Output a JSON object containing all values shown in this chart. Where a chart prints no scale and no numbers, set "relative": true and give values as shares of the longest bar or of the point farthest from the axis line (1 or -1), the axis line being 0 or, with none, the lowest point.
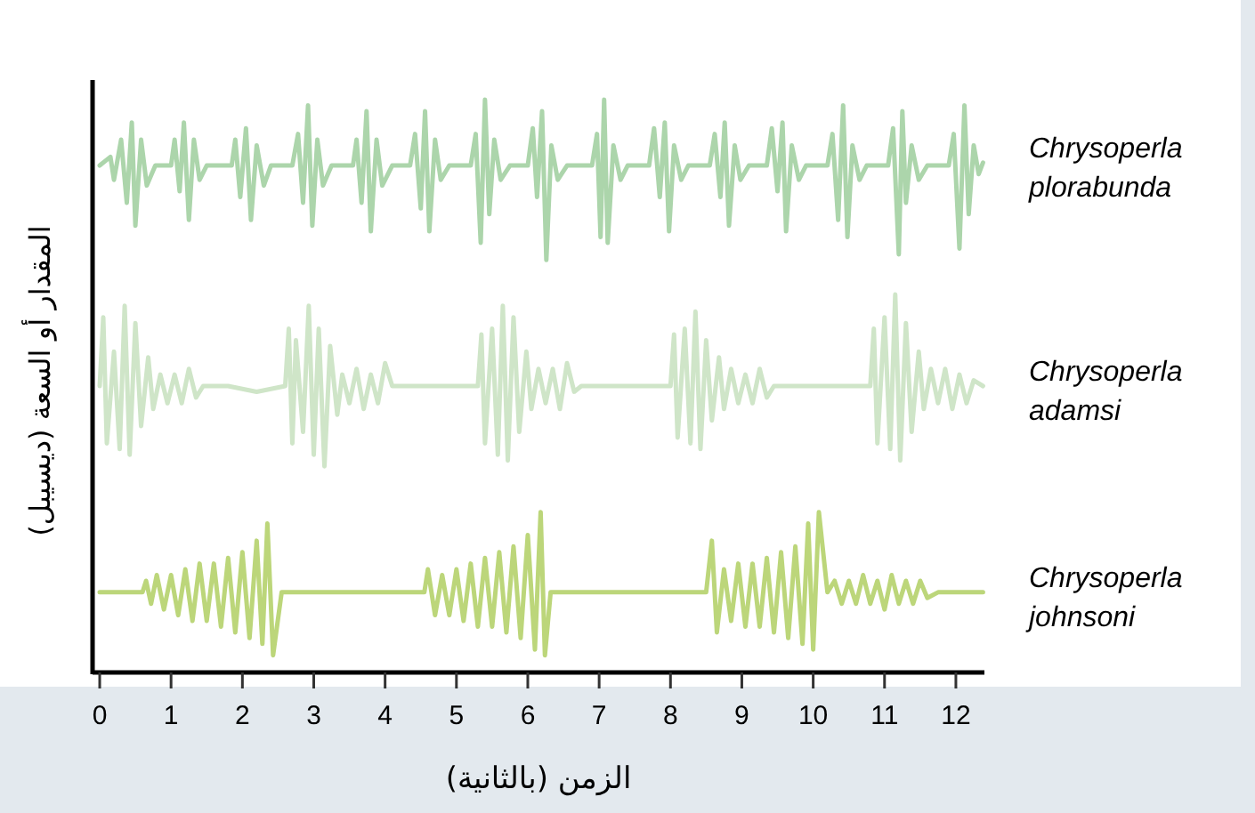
{
  "chart_data": {
    "type": "line",
    "relative": true,
    "xlabel": "الزمن (بالثانية)",
    "ylabel": "المقدار أو السعة (ديسيبل)",
    "xlim": [
      -0.1,
      12.4
    ],
    "xticks": [
      0,
      1,
      2,
      3,
      4,
      5,
      6,
      7,
      8,
      9,
      10,
      11,
      12
    ],
    "series": [
      {
        "name": "Chrysoperla plorabunda",
        "color": "#acd5ab",
        "x": [
          0,
          0.15,
          0.2,
          0.3,
          0.38,
          0.45,
          0.5,
          0.58,
          0.66,
          0.78,
          1.0,
          1.05,
          1.12,
          1.18,
          1.25,
          1.32,
          1.4,
          1.5,
          1.85,
          1.9,
          1.97,
          2.05,
          2.12,
          2.2,
          2.3,
          2.4,
          2.7,
          2.78,
          2.85,
          2.92,
          2.98,
          3.05,
          3.13,
          3.25,
          3.55,
          3.6,
          3.67,
          3.74,
          3.8,
          3.88,
          3.96,
          4.1,
          4.35,
          4.42,
          4.5,
          4.56,
          4.62,
          4.7,
          4.78,
          4.9,
          5.2,
          5.27,
          5.34,
          5.4,
          5.46,
          5.53,
          5.62,
          5.75,
          6.0,
          6.07,
          6.13,
          6.2,
          6.26,
          6.33,
          6.42,
          6.55,
          6.9,
          6.97,
          7.02,
          7.07,
          7.12,
          7.2,
          7.3,
          7.4,
          7.7,
          7.77,
          7.85,
          7.92,
          7.98,
          8.05,
          8.15,
          8.25,
          8.55,
          8.62,
          8.7,
          8.76,
          8.82,
          8.9,
          8.98,
          9.1,
          9.35,
          9.42,
          9.5,
          9.57,
          9.62,
          9.7,
          9.8,
          9.9,
          10.2,
          10.27,
          10.35,
          10.42,
          10.48,
          10.55,
          10.65,
          10.75,
          11.05,
          11.12,
          11.2,
          11.25,
          11.3,
          11.38,
          11.48,
          11.6,
          11.9,
          11.97,
          12.05,
          12.12,
          12.18,
          12.25,
          12.32,
          12.38
        ],
        "values": [
          0.885,
          0.9,
          0.86,
          0.93,
          0.82,
          0.96,
          0.78,
          0.93,
          0.85,
          0.885,
          0.885,
          0.93,
          0.84,
          0.96,
          0.79,
          0.93,
          0.86,
          0.885,
          0.885,
          0.93,
          0.83,
          0.95,
          0.79,
          0.92,
          0.85,
          0.885,
          0.885,
          0.94,
          0.82,
          0.99,
          0.78,
          0.93,
          0.85,
          0.885,
          0.885,
          0.93,
          0.82,
          0.98,
          0.77,
          0.93,
          0.85,
          0.885,
          0.885,
          0.94,
          0.81,
          0.98,
          0.77,
          0.93,
          0.86,
          0.885,
          0.885,
          0.94,
          0.75,
          1.0,
          0.8,
          0.93,
          0.86,
          0.885,
          0.885,
          0.95,
          0.83,
          0.98,
          0.72,
          0.92,
          0.86,
          0.885,
          0.885,
          0.94,
          0.76,
          1.0,
          0.75,
          0.92,
          0.86,
          0.885,
          0.885,
          0.95,
          0.83,
          0.96,
          0.77,
          0.92,
          0.86,
          0.885,
          0.885,
          0.94,
          0.83,
          0.96,
          0.78,
          0.92,
          0.86,
          0.885,
          0.885,
          0.95,
          0.84,
          0.96,
          0.77,
          0.92,
          0.86,
          0.885,
          0.885,
          0.94,
          0.79,
          0.99,
          0.76,
          0.92,
          0.86,
          0.885,
          0.885,
          0.95,
          0.73,
          0.98,
          0.82,
          0.92,
          0.86,
          0.885,
          0.885,
          0.94,
          0.74,
          0.99,
          0.8,
          0.92,
          0.87,
          0.89
        ]
      },
      {
        "name": "Chrysoperla adamsi",
        "color": "#cfe5c8",
        "x": [
          0,
          0.05,
          0.1,
          0.2,
          0.28,
          0.35,
          0.42,
          0.5,
          0.58,
          0.68,
          0.75,
          0.85,
          0.95,
          1.05,
          1.15,
          1.25,
          1.35,
          1.45,
          1.8,
          2.2,
          2.6,
          2.65,
          2.7,
          2.75,
          2.85,
          2.93,
          3.0,
          3.07,
          3.15,
          3.23,
          3.33,
          3.4,
          3.5,
          3.6,
          3.7,
          3.8,
          3.9,
          4.0,
          4.1,
          4.5,
          4.9,
          5.3,
          5.35,
          5.4,
          5.5,
          5.58,
          5.65,
          5.72,
          5.8,
          5.88,
          5.98,
          6.05,
          6.15,
          6.25,
          6.35,
          6.45,
          6.55,
          6.65,
          6.75,
          7.1,
          7.5,
          8.0,
          8.05,
          8.1,
          8.2,
          8.28,
          8.35,
          8.42,
          8.5,
          8.58,
          8.68,
          8.75,
          8.85,
          8.95,
          9.05,
          9.15,
          9.25,
          9.35,
          9.45,
          9.8,
          10.3,
          10.8,
          10.85,
          10.9,
          11.0,
          11.08,
          11.15,
          11.22,
          11.3,
          11.38,
          11.48,
          11.55,
          11.65,
          11.75,
          11.85,
          11.95,
          12.05,
          12.15,
          12.25,
          12.38
        ],
        "values": [
          0.5,
          0.62,
          0.4,
          0.56,
          0.39,
          0.64,
          0.38,
          0.61,
          0.43,
          0.55,
          0.46,
          0.52,
          0.47,
          0.52,
          0.47,
          0.53,
          0.48,
          0.5,
          0.5,
          0.49,
          0.5,
          0.6,
          0.4,
          0.58,
          0.42,
          0.64,
          0.38,
          0.6,
          0.36,
          0.57,
          0.45,
          0.52,
          0.47,
          0.53,
          0.46,
          0.52,
          0.47,
          0.54,
          0.5,
          0.5,
          0.5,
          0.5,
          0.59,
          0.4,
          0.6,
          0.38,
          0.64,
          0.37,
          0.62,
          0.42,
          0.56,
          0.46,
          0.53,
          0.47,
          0.53,
          0.46,
          0.54,
          0.49,
          0.5,
          0.5,
          0.5,
          0.5,
          0.59,
          0.41,
          0.6,
          0.4,
          0.63,
          0.39,
          0.58,
          0.44,
          0.55,
          0.46,
          0.53,
          0.47,
          0.52,
          0.47,
          0.53,
          0.48,
          0.5,
          0.5,
          0.5,
          0.5,
          0.6,
          0.4,
          0.62,
          0.39,
          0.66,
          0.37,
          0.61,
          0.42,
          0.56,
          0.46,
          0.53,
          0.47,
          0.53,
          0.46,
          0.52,
          0.47,
          0.51,
          0.5
        ]
      },
      {
        "name": "Chrysoperla johnsoni",
        "color": "#bcd67a",
        "x": [
          0,
          0.6,
          0.65,
          0.72,
          0.8,
          0.9,
          1.0,
          1.1,
          1.2,
          1.3,
          1.4,
          1.5,
          1.6,
          1.7,
          1.8,
          1.9,
          2.0,
          2.1,
          2.2,
          2.28,
          2.35,
          2.43,
          2.55,
          3.0,
          3.5,
          4.0,
          4.55,
          4.6,
          4.7,
          4.8,
          4.9,
          5.0,
          5.1,
          5.2,
          5.3,
          5.4,
          5.5,
          5.6,
          5.7,
          5.8,
          5.9,
          6.0,
          6.1,
          6.18,
          6.24,
          6.32,
          6.5,
          7.0,
          7.5,
          8.0,
          8.5,
          8.58,
          8.65,
          8.75,
          8.85,
          8.95,
          9.05,
          9.15,
          9.25,
          9.35,
          9.45,
          9.55,
          9.65,
          9.75,
          9.85,
          9.93,
          10.0,
          10.08,
          10.2,
          10.3,
          10.4,
          10.5,
          10.6,
          10.7,
          10.8,
          10.9,
          11.0,
          11.1,
          11.2,
          11.3,
          11.4,
          11.5,
          11.6,
          11.75,
          12.0,
          12.38
        ],
        "values": [
          0.14,
          0.14,
          0.16,
          0.12,
          0.17,
          0.11,
          0.17,
          0.1,
          0.18,
          0.09,
          0.19,
          0.09,
          0.19,
          0.08,
          0.2,
          0.07,
          0.21,
          0.06,
          0.23,
          0.05,
          0.26,
          0.03,
          0.14,
          0.14,
          0.14,
          0.14,
          0.14,
          0.18,
          0.1,
          0.17,
          0.1,
          0.18,
          0.09,
          0.19,
          0.08,
          0.2,
          0.08,
          0.21,
          0.07,
          0.22,
          0.06,
          0.24,
          0.04,
          0.28,
          0.03,
          0.14,
          0.14,
          0.14,
          0.14,
          0.14,
          0.14,
          0.23,
          0.07,
          0.18,
          0.09,
          0.19,
          0.08,
          0.19,
          0.08,
          0.2,
          0.07,
          0.21,
          0.06,
          0.22,
          0.05,
          0.26,
          0.04,
          0.28,
          0.14,
          0.16,
          0.12,
          0.16,
          0.12,
          0.17,
          0.12,
          0.16,
          0.11,
          0.17,
          0.12,
          0.16,
          0.12,
          0.16,
          0.13,
          0.14,
          0.14,
          0.14
        ]
      }
    ]
  }
}
